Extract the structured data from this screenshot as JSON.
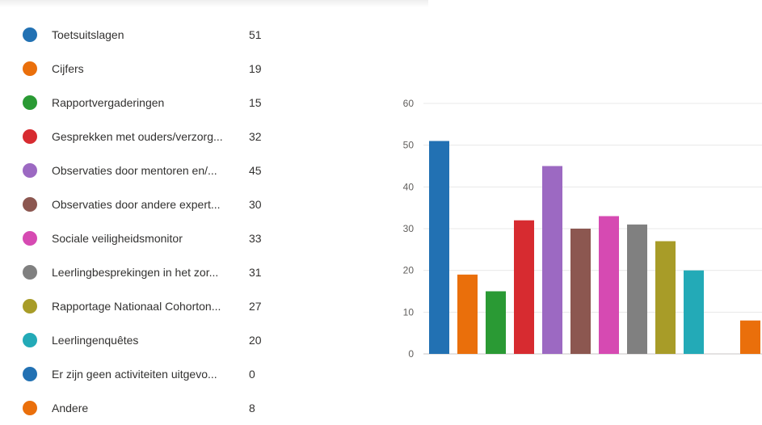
{
  "chart_data": {
    "type": "bar",
    "categories": [
      "Toetsuitslagen",
      "Cijfers",
      "Rapportvergaderingen",
      "Gesprekken met ouders/verzorg...",
      "Observaties door mentoren en/...",
      "Observaties door andere expert...",
      "Sociale veiligheidsmonitor",
      "Leerlingbesprekingen in het zor...",
      "Rapportage Nationaal Cohorton...",
      "Leerlingenquêtes",
      "Er zijn geen activiteiten uitgevo...",
      "Andere"
    ],
    "values": [
      51,
      19,
      15,
      32,
      45,
      30,
      33,
      31,
      27,
      20,
      0,
      8
    ],
    "colors": [
      "#2271b3",
      "#ea6f0b",
      "#2a9a34",
      "#d72b30",
      "#9c69c2",
      "#8c5750",
      "#d64ab2",
      "#808080",
      "#a89c28",
      "#23aab7",
      "#2271b3",
      "#ea6f0b"
    ],
    "ylim": [
      0,
      60
    ],
    "yticks": [
      0,
      10,
      20,
      30,
      40,
      50,
      60
    ],
    "grid": true,
    "legend_position": "left",
    "title": "",
    "xlabel": "",
    "ylabel": ""
  }
}
